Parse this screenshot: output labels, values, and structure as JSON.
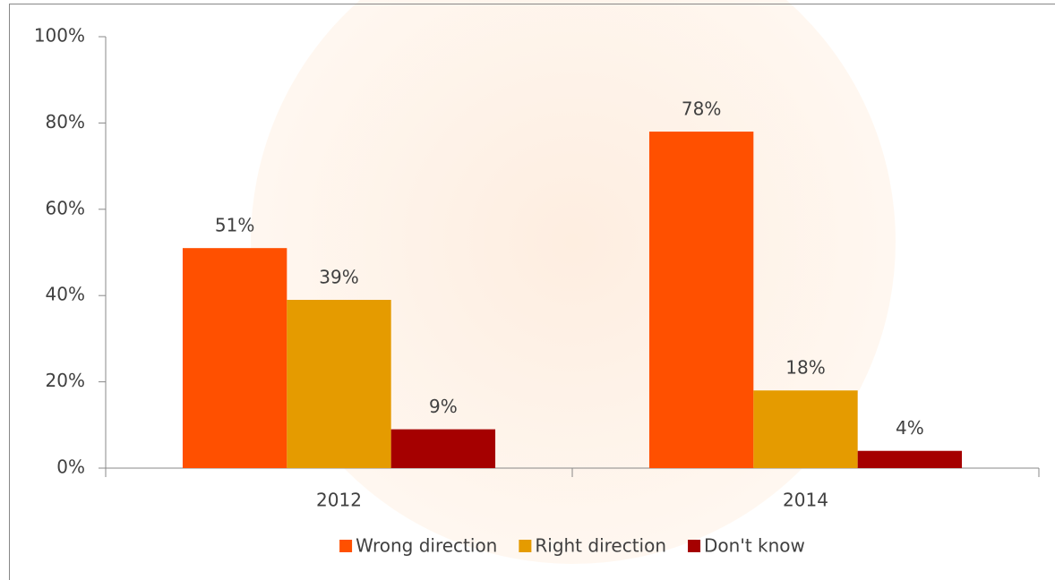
{
  "chart_data": {
    "type": "bar",
    "categories": [
      "2012",
      "2014"
    ],
    "series": [
      {
        "name": "Wrong direction",
        "color": "#ff5000",
        "values": [
          51,
          78
        ],
        "value_labels": [
          "51%",
          "78%"
        ]
      },
      {
        "name": "Right direction",
        "color": "#e59b00",
        "values": [
          39,
          18
        ],
        "value_labels": [
          "39%",
          "18%"
        ]
      },
      {
        "name": "Don't know",
        "color": "#a50000",
        "values": [
          9,
          4
        ],
        "value_labels": [
          "9%",
          "4%"
        ]
      }
    ],
    "ylim": [
      0,
      100
    ],
    "yticks": [
      {
        "value": 0,
        "label": "0%"
      },
      {
        "value": 20,
        "label": "20%"
      },
      {
        "value": 40,
        "label": "40%"
      },
      {
        "value": 60,
        "label": "60%"
      },
      {
        "value": 80,
        "label": "80%"
      },
      {
        "value": 100,
        "label": "100%"
      }
    ],
    "legend": "bottom"
  }
}
